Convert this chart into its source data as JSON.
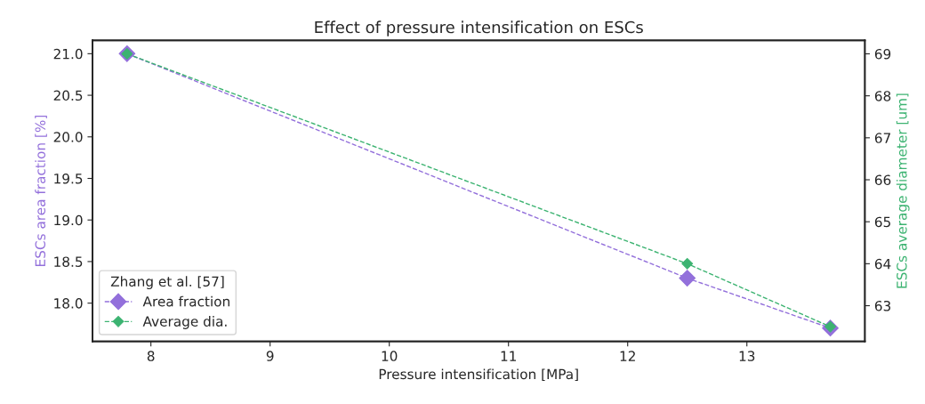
{
  "chart_data": {
    "type": "line",
    "title": "Effect of pressure intensification on ESCs",
    "xlabel": "Pressure intensification [MPa]",
    "ylabel": "ESCs area fraction [%]",
    "y2label": "ESCs average diameter [um]",
    "legend_title": "Zhang et al. [57]",
    "x": [
      7.8,
      12.5,
      13.7
    ],
    "series": [
      {
        "name": "Area fraction",
        "color": "#9370db",
        "values": [
          21.0,
          18.3,
          17.7
        ]
      },
      {
        "name": "Average dia.",
        "color": "#3cb371",
        "values": [
          69,
          64,
          62.5
        ],
        "axis": "y2"
      }
    ],
    "xlim": [
      7.51,
      13.99
    ],
    "xticks": [
      8,
      9,
      10,
      11,
      12,
      13
    ],
    "ylim": [
      17.54,
      21.16
    ],
    "yticks": [
      {
        "value": 18,
        "label": "18.0"
      },
      18.5,
      {
        "value": 19,
        "label": "19.0"
      },
      19.5,
      {
        "value": 20,
        "label": "20.0"
      },
      20.5,
      {
        "value": 21,
        "label": "21.0"
      }
    ],
    "y2lim": [
      62.15,
      69.32
    ],
    "y2ticks": [
      63,
      64,
      65,
      66,
      67,
      68,
      69
    ],
    "marker": "diamond",
    "line_style": "dashed",
    "grid": false,
    "legend": "bottom left"
  }
}
